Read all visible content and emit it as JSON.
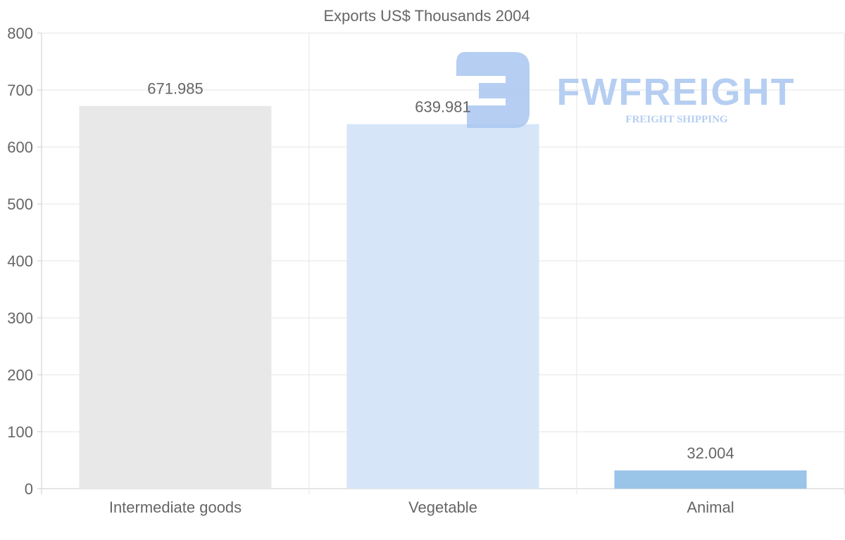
{
  "chart_data": {
    "type": "bar",
    "title": "Exports US$ Thousands 2004",
    "categories": [
      "Intermediate goods",
      "Vegetable",
      "Animal"
    ],
    "values": [
      671.985,
      639.981,
      32.004
    ],
    "value_labels": [
      "671.985",
      "639.981",
      "32.004"
    ],
    "colors": [
      "#e8e8e8",
      "#d6e6f8",
      "#9ac4e8"
    ],
    "xlabel": "",
    "ylabel": "",
    "ylim": [
      0,
      800
    ],
    "yticks": [
      "0",
      "100",
      "200",
      "300",
      "400",
      "500",
      "600",
      "700",
      "800"
    ],
    "grid": true,
    "legend": "none"
  },
  "watermark": {
    "brand": "FWFREIGHT",
    "tagline": "FREIGHT SHIPPING",
    "color": "#a9c6f0"
  }
}
